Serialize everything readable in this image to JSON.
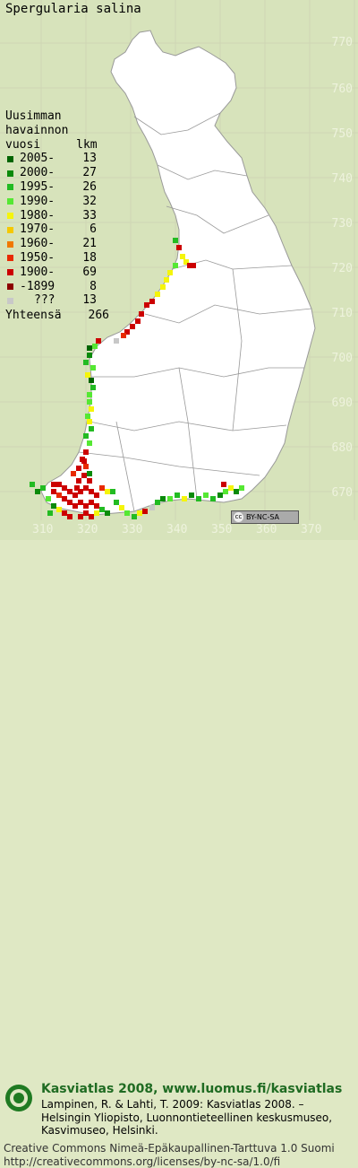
{
  "title": "Spergularia salina",
  "legend": {
    "header": [
      "Uusimman",
      "havainnon",
      "vuosi"
    ],
    "header_count": "lkm",
    "rows": [
      {
        "label": "2005-",
        "count": "13",
        "color": "#006400"
      },
      {
        "label": "2000-",
        "count": "27",
        "color": "#0a8a0a"
      },
      {
        "label": "1995-",
        "count": "26",
        "color": "#22bb22"
      },
      {
        "label": "1990-",
        "count": "32",
        "color": "#55e833"
      },
      {
        "label": "1980-",
        "count": "33",
        "color": "#f5f50a"
      },
      {
        "label": "1970-",
        "count": "6",
        "color": "#f5c800"
      },
      {
        "label": "1960-",
        "count": "21",
        "color": "#f07800"
      },
      {
        "label": "1950-",
        "count": "18",
        "color": "#e82a00"
      },
      {
        "label": "1900-",
        "count": "69",
        "color": "#cc0000"
      },
      {
        "label": "-1899",
        "count": "8",
        "color": "#8c0000"
      },
      {
        "label": "???",
        "count": "13",
        "color": "#c8c8c8"
      }
    ],
    "total_label": "Yhteensä",
    "total_count": "266"
  },
  "y_axis": [
    "770",
    "760",
    "750",
    "740",
    "730",
    "720",
    "710",
    "700",
    "690",
    "680",
    "670"
  ],
  "x_axis": [
    "310",
    "320",
    "330",
    "340",
    "350",
    "360",
    "370"
  ],
  "cc_badge": "BY-NC-SA",
  "footer": {
    "title": "Kasviatlas 2008, www.luomus.fi/kasviatlas",
    "reference": "Lampinen, R. & Lahti, T. 2009: Kasviatlas 2008. – Helsingin Yliopisto, Luonnontieteellinen keskusmuseo, Kasvimuseo, Helsinki.",
    "license": "Creative Commons Nimeä-Epäkaupallinen-Tarttuva 1.0 Suomi http://creativecommons.org/licenses/by-nc-sa/1.0/fi"
  },
  "map_colors": {
    "land": "#ffffff",
    "sea": "#d7e3bb",
    "grid": "#cfd6b4",
    "border": "#888888"
  }
}
